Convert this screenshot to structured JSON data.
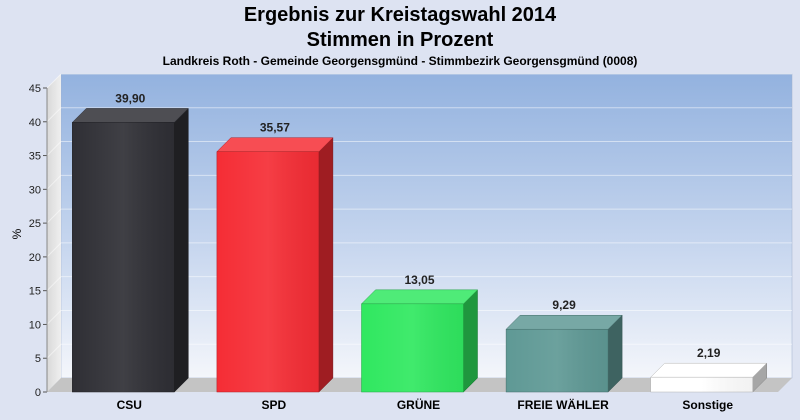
{
  "chart_data": {
    "type": "bar",
    "title": "Ergebnis zur Kreistagswahl 2014",
    "subtitle": "Stimmen in Prozent",
    "caption": "Landkreis Roth - Gemeinde Georgensgmünd - Stimmbezirk Georgensgmünd (0008)",
    "ylabel": "%",
    "xlabel": "",
    "ylim": [
      0,
      45
    ],
    "yticks": [
      0,
      5,
      10,
      15,
      20,
      25,
      30,
      35,
      40,
      45
    ],
    "categories": [
      "CSU",
      "SPD",
      "GRÜNE",
      "FREIE WÄHLER",
      "Sonstige"
    ],
    "values": [
      39.9,
      35.57,
      13.05,
      9.29,
      2.19
    ],
    "value_labels": [
      "39,90",
      "35,57",
      "13,05",
      "9,29",
      "2,19"
    ],
    "colors": [
      "#2f2f35",
      "#f52d35",
      "#30e860",
      "#5f9995",
      "#ffffff"
    ],
    "grid": true,
    "legend": "none",
    "view": "3d"
  }
}
